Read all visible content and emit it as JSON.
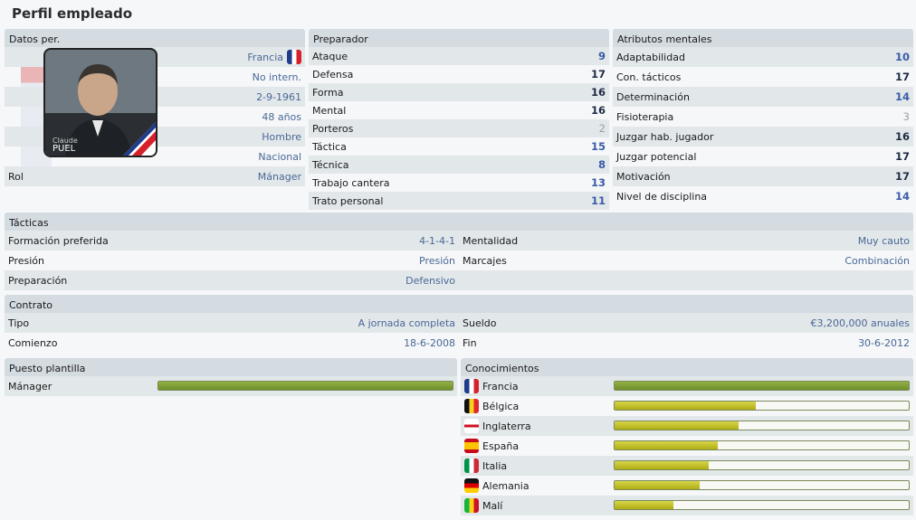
{
  "page_title": "Perfil empleado",
  "datos": {
    "header": "Datos per.",
    "nationality": "Francia",
    "intl": "No intern.",
    "dob": "2-9-1961",
    "age": "48 años",
    "gender": "Hombre",
    "status": "Nacional",
    "rol_label": "Rol",
    "rol_value": "Mánager",
    "photo_first": "Claude",
    "photo_last": "PUEL"
  },
  "preparador": {
    "header": "Preparador",
    "rows": [
      {
        "label": "Ataque",
        "value": "9"
      },
      {
        "label": "Defensa",
        "value": "17"
      },
      {
        "label": "Forma",
        "value": "16"
      },
      {
        "label": "Mental",
        "value": "16"
      },
      {
        "label": "Porteros",
        "value": "2"
      },
      {
        "label": "Táctica",
        "value": "15"
      },
      {
        "label": "Técnica",
        "value": "8"
      },
      {
        "label": "Trabajo cantera",
        "value": "13"
      },
      {
        "label": "Trato personal",
        "value": "11"
      }
    ]
  },
  "mentales": {
    "header": "Atributos mentales",
    "rows": [
      {
        "label": "Adaptabilidad",
        "value": "10"
      },
      {
        "label": "Con. tácticos",
        "value": "17"
      },
      {
        "label": "Determinación",
        "value": "14"
      },
      {
        "label": "Fisioterapia",
        "value": "3"
      },
      {
        "label": "Juzgar hab. jugador",
        "value": "16"
      },
      {
        "label": "Juzgar potencial",
        "value": "17"
      },
      {
        "label": "Motivación",
        "value": "17"
      },
      {
        "label": "Nivel de disciplina",
        "value": "14"
      }
    ]
  },
  "tacticas": {
    "header": "Tácticas",
    "formacion_label": "Formación preferida",
    "formacion_value": "4-1-4-1",
    "mentalidad_label": "Mentalidad",
    "mentalidad_value": "Muy cauto",
    "presion_label": "Presión",
    "presion_value": "Presión",
    "marcajes_label": "Marcajes",
    "marcajes_value": "Combinación",
    "preparacion_label": "Preparación",
    "preparacion_value": "Defensivo"
  },
  "contrato": {
    "header": "Contrato",
    "tipo_label": "Tipo",
    "tipo_value": "A jornada completa",
    "sueldo_label": "Sueldo",
    "sueldo_value": "€3,200,000 anuales",
    "comienzo_label": "Comienzo",
    "comienzo_value": "18-6-2008",
    "fin_label": "Fin",
    "fin_value": "30-6-2012"
  },
  "puesto": {
    "header": "Puesto plantilla",
    "label": "Mánager",
    "level": 1.0
  },
  "conocimientos": {
    "header": "Conocimientos",
    "rows": [
      {
        "country": "Francia",
        "level": 1.0,
        "color": "green"
      },
      {
        "country": "Bélgica",
        "level": 0.48,
        "color": "yellow"
      },
      {
        "country": "Inglaterra",
        "level": 0.42,
        "color": "yellow"
      },
      {
        "country": "España",
        "level": 0.35,
        "color": "yellow"
      },
      {
        "country": "Italia",
        "level": 0.32,
        "color": "yellow"
      },
      {
        "country": "Alemania",
        "level": 0.29,
        "color": "yellow"
      },
      {
        "country": "Malí",
        "level": 0.2,
        "color": "yellow"
      }
    ]
  }
}
